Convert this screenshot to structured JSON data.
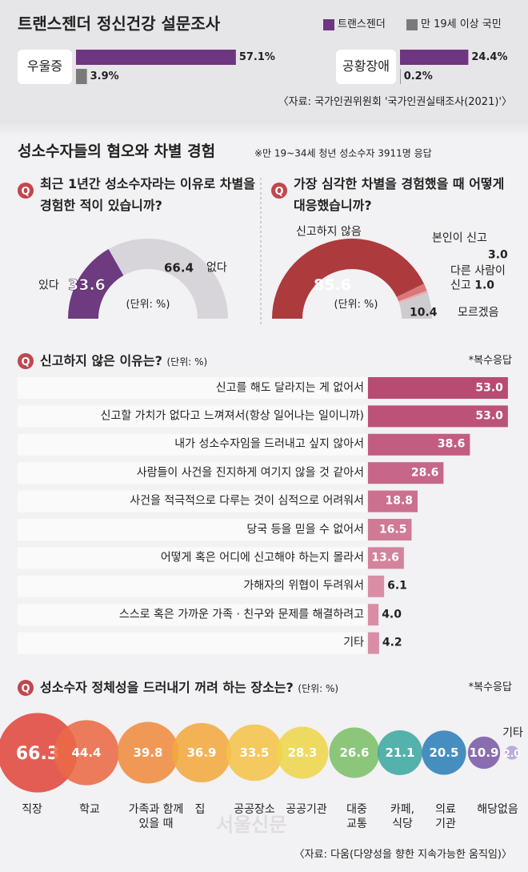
{
  "title": "트랜스젠더 정신건강 설문조사",
  "source": "〈자료: 국가인권위원회 '국가인권실태조사(2021)'〉",
  "section_title": "성소수자들의 혐오와 차별 경험",
  "section_note": "※만 19~34세 청년 성소수자 3911명 응답",
  "badge": "Q",
  "watermark": "서울신문",
  "chart_data": [
    {
      "type": "bar",
      "orientation": "horizontal",
      "categories": [
        "우울증",
        "공황장애"
      ],
      "series": [
        {
          "name": "트랜스젠더",
          "color": "#6e3580",
          "values": [
            57.1,
            24.4
          ],
          "value_labels": [
            "57.1%",
            "24.4%"
          ]
        },
        {
          "name": "만 19세 이상 국민",
          "color": "#7a7a7a",
          "values": [
            3.9,
            0.2
          ],
          "value_labels": [
            "3.9%",
            "0.2%"
          ]
        }
      ]
    },
    {
      "type": "donut",
      "half": true,
      "title": "최근 1년간 성소수자라는 이유로 차별을 경험한 적이 있습니까?",
      "unit": "(단위: %)",
      "categories": [
        "있다",
        "없다"
      ],
      "values": [
        33.6,
        66.4
      ],
      "colors": [
        "#6e3a80",
        "#d8d5da"
      ]
    },
    {
      "type": "donut",
      "half": true,
      "title": "가장 심각한 차별을 경험했을 때 어떻게 대응했습니까?",
      "unit": "(단위: %)",
      "categories": [
        "신고하지 않음",
        "본인이 신고",
        "다른 사람이 신고",
        "모르겠음"
      ],
      "values": [
        85.6,
        3.0,
        1.0,
        10.4
      ],
      "value_labels": [
        "85.6",
        "3.0",
        "1.0",
        "10.4"
      ],
      "colors": [
        "#ad3a3d",
        "#d9777a",
        "#e8adae",
        "#cfccd0"
      ]
    },
    {
      "type": "bar",
      "orientation": "horizontal",
      "title": "신고하지 않은 이유는?",
      "unit": "(단위: %)",
      "note": "*복수응답",
      "categories": [
        "신고를 해도 달라지는 게 없어서",
        "신고할 가치가 없다고 느껴져서(항상 일어나는 일이니까)",
        "내가 성소수자임을 드러내고 싶지 않아서",
        "사람들이 사건을 진지하게 여기지 않을 것 같아서",
        "사건을 적극적으로 다루는 것이 심적으로 어려워서",
        "당국 등을 믿을 수 없어서",
        "어떻게 혹은 어디에 신고해야 하는지 몰라서",
        "가해자의 위협이 두려워서",
        "스스로 혹은 가까운 가족 · 친구와 문제를 해결하려고",
        "기타"
      ],
      "values": [
        53.0,
        53.0,
        38.6,
        28.6,
        18.8,
        16.5,
        13.6,
        6.1,
        4.0,
        4.2
      ],
      "value_labels": [
        "53.0",
        "53.0",
        "38.6",
        "28.6",
        "18.8",
        "16.5",
        "13.6",
        "6.1",
        "4.0",
        "4.2"
      ],
      "colors": [
        "#b84b72",
        "#bc5278",
        "#c25c80",
        "#c76688",
        "#cc708f",
        "#d07a96",
        "#d4839d",
        "#d98ea6",
        "#d98ea6",
        "#d98ea6"
      ]
    },
    {
      "type": "bubble",
      "title": "성소수자 정체성을 드러내기 꺼려 하는 장소는?",
      "unit": "(단위: %)",
      "note": "*복수응답",
      "categories": [
        "직장",
        "학교",
        "가족과 함께 있을 때",
        "집",
        "공공장소",
        "공공기관",
        "대중교통",
        "카페, 식당",
        "의료기관",
        "해당없음",
        "기타"
      ],
      "values": [
        66.3,
        44.4,
        39.8,
        36.9,
        33.5,
        28.3,
        26.6,
        21.1,
        20.5,
        10.9,
        2.0
      ],
      "value_labels": [
        "66.3",
        "44.4",
        "39.8",
        "36.9",
        "33.5",
        "28.3",
        "26.6",
        "21.1",
        "20.5",
        "10.9",
        "2.0"
      ],
      "colors": [
        "#e0483f",
        "#ea6a45",
        "#ef8c40",
        "#f2a83f",
        "#f4c34a",
        "#eed64c",
        "#7cbf6a",
        "#3fa7a0",
        "#2e7fb8",
        "#7b5aa6",
        "#b4a3d4"
      ],
      "source": "〈자료: 다움(다양성을 향한 지속가능한 움직임)〉"
    }
  ]
}
